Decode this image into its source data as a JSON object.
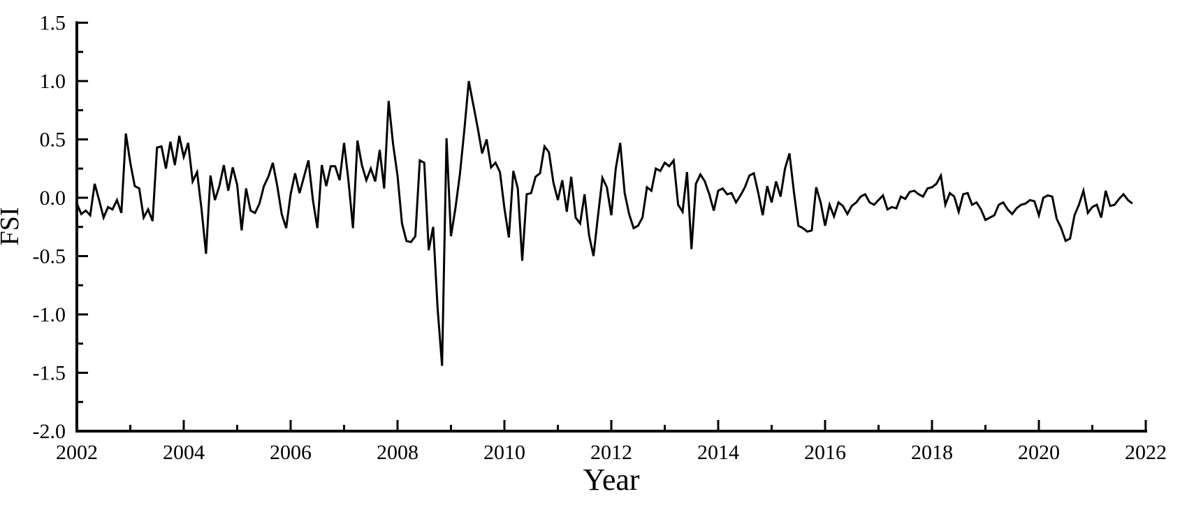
{
  "figure": {
    "background_color": "#ffffff",
    "line_color": "#000000",
    "axis_color": "#000000"
  },
  "chart_data": {
    "type": "line",
    "title": "",
    "xlabel": "Year",
    "ylabel": "FSI",
    "grid": false,
    "legend_position": "none",
    "xlim": [
      2002,
      2022
    ],
    "ylim": [
      -2.0,
      1.5
    ],
    "x_start_year": 2002,
    "points_per_year": 12,
    "x_tick_labels": [
      "2002",
      "2004",
      "2006",
      "2008",
      "2010",
      "2012",
      "2014",
      "2016",
      "2018",
      "2020",
      "2022"
    ],
    "x_tick_years": [
      2002,
      2004,
      2006,
      2008,
      2010,
      2012,
      2014,
      2016,
      2018,
      2020,
      2022
    ],
    "x_minor_tick_years": [
      2003,
      2005,
      2007,
      2009,
      2011,
      2013,
      2015,
      2017,
      2019,
      2021
    ],
    "y_tick_labels": [
      "1.5",
      "1.0",
      "0.5",
      "0.0",
      "-0.5",
      "-1.0",
      "-1.5",
      "-2.0"
    ],
    "y_tick_values": [
      1.5,
      1.0,
      0.5,
      0.0,
      -0.5,
      -1.0,
      -1.5,
      -2.0
    ],
    "y_minor_tick_values": [
      1.25,
      0.75,
      0.25,
      -0.25,
      -0.75,
      -1.25,
      -1.75
    ],
    "series": [
      {
        "name": "FSI",
        "start": "2002-01",
        "frequency": "monthly",
        "values": [
          -0.05,
          -0.14,
          -0.11,
          -0.15,
          0.12,
          -0.02,
          -0.17,
          -0.08,
          -0.1,
          -0.02,
          -0.13,
          0.55,
          0.3,
          0.1,
          0.08,
          -0.17,
          -0.1,
          -0.2,
          0.43,
          0.44,
          0.25,
          0.48,
          0.28,
          0.53,
          0.35,
          0.47,
          0.14,
          0.22,
          -0.1,
          -0.48,
          0.19,
          -0.02,
          0.1,
          0.28,
          0.06,
          0.26,
          0.11,
          -0.28,
          0.08,
          -0.11,
          -0.13,
          -0.05,
          0.1,
          0.18,
          0.3,
          0.1,
          -0.14,
          -0.26,
          0.03,
          0.21,
          0.04,
          0.18,
          0.32,
          -0.02,
          -0.26,
          0.28,
          0.1,
          0.27,
          0.27,
          0.15,
          0.47,
          0.14,
          -0.26,
          0.49,
          0.28,
          0.15,
          0.25,
          0.14,
          0.41,
          0.08,
          0.83,
          0.46,
          0.19,
          -0.22,
          -0.37,
          -0.38,
          -0.33,
          0.32,
          0.3,
          -0.45,
          -0.25,
          -0.95,
          -1.44,
          0.51,
          -0.33,
          -0.09,
          0.2,
          0.58,
          1.0,
          0.8,
          0.6,
          0.38,
          0.5,
          0.26,
          0.3,
          0.22,
          -0.09,
          -0.34,
          0.23,
          0.08,
          -0.54,
          0.03,
          0.04,
          0.18,
          0.21,
          0.44,
          0.39,
          0.13,
          -0.02,
          0.15,
          -0.12,
          0.18,
          -0.17,
          -0.22,
          0.03,
          -0.32,
          -0.5,
          -0.16,
          0.17,
          0.09,
          -0.15,
          0.25,
          0.47,
          0.04,
          -0.14,
          -0.26,
          -0.24,
          -0.17,
          0.09,
          0.06,
          0.25,
          0.23,
          0.3,
          0.27,
          0.32,
          -0.06,
          -0.12,
          0.22,
          -0.44,
          0.12,
          0.2,
          0.14,
          0.03,
          -0.11,
          0.06,
          0.08,
          0.03,
          0.04,
          -0.04,
          0.02,
          0.09,
          0.19,
          0.21,
          0.04,
          -0.15,
          0.1,
          -0.04,
          0.14,
          0.01,
          0.25,
          0.38,
          0.05,
          -0.24,
          -0.26,
          -0.29,
          -0.28,
          0.09,
          -0.04,
          -0.24,
          -0.06,
          -0.16,
          -0.04,
          -0.07,
          -0.14,
          -0.07,
          -0.04,
          0.01,
          0.03,
          -0.04,
          -0.06,
          -0.02,
          0.02,
          -0.1,
          -0.08,
          -0.09,
          0.01,
          -0.01,
          0.05,
          0.06,
          0.03,
          0.01,
          0.08,
          0.09,
          0.12,
          0.19,
          -0.06,
          0.04,
          0.01,
          -0.12,
          0.03,
          0.04,
          -0.06,
          -0.04,
          -0.1,
          -0.19,
          -0.17,
          -0.15,
          -0.06,
          -0.04,
          -0.1,
          -0.14,
          -0.09,
          -0.06,
          -0.05,
          -0.02,
          -0.03,
          -0.15,
          0.0,
          0.02,
          0.01,
          -0.18,
          -0.26,
          -0.37,
          -0.35,
          -0.15,
          -0.06,
          0.06,
          -0.13,
          -0.08,
          -0.06,
          -0.17,
          0.06,
          -0.07,
          -0.06,
          -0.01,
          0.03,
          -0.02,
          -0.05
        ]
      }
    ]
  }
}
